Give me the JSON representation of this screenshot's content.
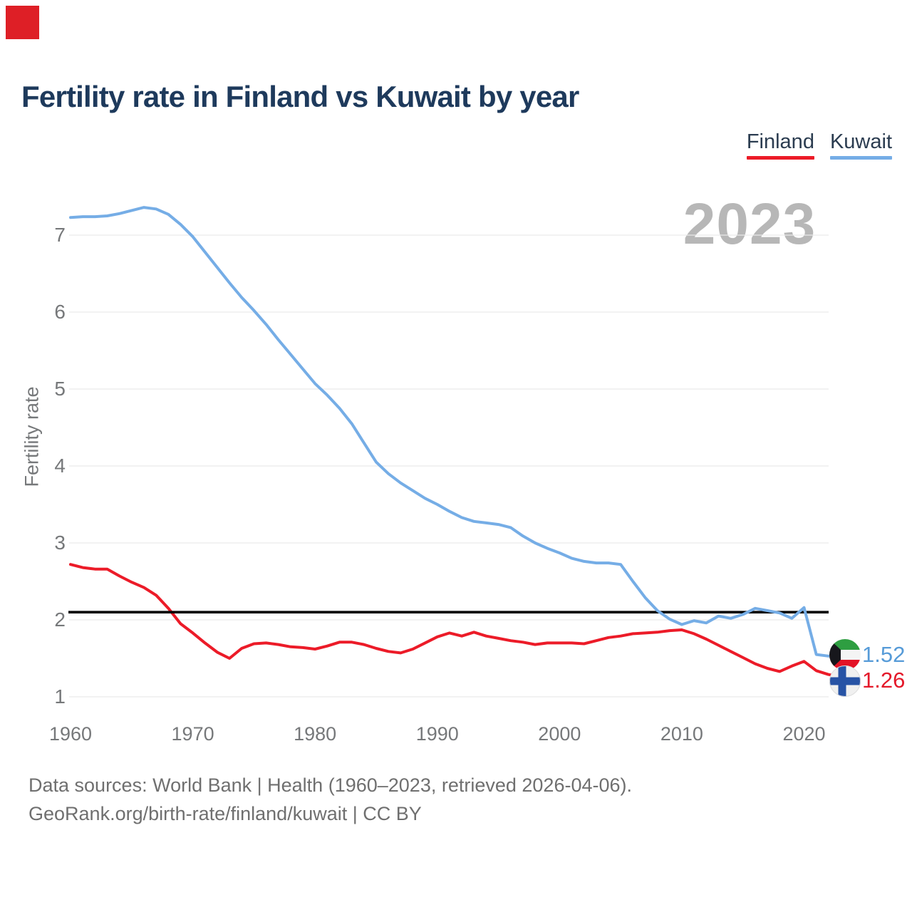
{
  "page": {
    "corner_marker_color": "#de1f26"
  },
  "header": {
    "title": "Fertility rate in Finland vs Kuwait by year"
  },
  "legend": [
    {
      "label": "Finland",
      "color": "#ec1b28"
    },
    {
      "label": "Kuwait",
      "color": "#75ade6"
    }
  ],
  "watermark": {
    "text": "2023"
  },
  "footer": {
    "line1": "Data sources: World Bank | Health (1960–2023, retrieved 2026-04-06).",
    "line2": "GeoRank.org/birth-rate/finland/kuwait | CC BY"
  },
  "chart_data": {
    "type": "line",
    "title": "Fertility rate in Finland vs Kuwait by year",
    "xlabel": "",
    "ylabel": "Fertility rate",
    "x_start": 1960,
    "x_end": 2023,
    "xticks": [
      1960,
      1970,
      1980,
      1990,
      2000,
      2010,
      2020
    ],
    "yticks": [
      1,
      2,
      3,
      4,
      5,
      6,
      7
    ],
    "ylim": [
      1,
      7.5
    ],
    "grid": "horizontal",
    "legend_position": "top-right",
    "reference_line": {
      "value": 2.1,
      "color": "#000000"
    },
    "series": [
      {
        "name": "Kuwait",
        "color": "#75ade6",
        "values": [
          7.23,
          7.24,
          7.24,
          7.25,
          7.28,
          7.32,
          7.36,
          7.34,
          7.27,
          7.14,
          6.98,
          6.78,
          6.58,
          6.38,
          6.19,
          6.02,
          5.84,
          5.64,
          5.45,
          5.26,
          5.07,
          4.92,
          4.75,
          4.55,
          4.3,
          4.05,
          3.9,
          3.78,
          3.68,
          3.58,
          3.5,
          3.41,
          3.33,
          3.28,
          3.26,
          3.24,
          3.2,
          3.09,
          3.0,
          2.93,
          2.87,
          2.8,
          2.76,
          2.74,
          2.74,
          2.72,
          2.5,
          2.29,
          2.12,
          2.01,
          1.94,
          1.99,
          1.96,
          2.05,
          2.02,
          2.07,
          2.15,
          2.12,
          2.09,
          2.02,
          2.16,
          1.55,
          1.53,
          1.52
        ]
      },
      {
        "name": "Finland",
        "color": "#ec1b28",
        "values": [
          2.72,
          2.68,
          2.66,
          2.66,
          2.57,
          2.49,
          2.42,
          2.32,
          2.15,
          1.95,
          1.83,
          1.7,
          1.58,
          1.5,
          1.63,
          1.69,
          1.7,
          1.68,
          1.65,
          1.64,
          1.62,
          1.66,
          1.71,
          1.71,
          1.68,
          1.63,
          1.59,
          1.57,
          1.62,
          1.7,
          1.78,
          1.83,
          1.79,
          1.84,
          1.79,
          1.76,
          1.73,
          1.71,
          1.68,
          1.7,
          1.7,
          1.7,
          1.69,
          1.73,
          1.77,
          1.79,
          1.82,
          1.83,
          1.84,
          1.86,
          1.87,
          1.82,
          1.75,
          1.67,
          1.59,
          1.51,
          1.43,
          1.37,
          1.33,
          1.4,
          1.46,
          1.34,
          1.29,
          1.26
        ]
      }
    ],
    "end_labels": [
      {
        "series": "Kuwait",
        "text": "1.52",
        "color": "#569bd8",
        "flag": "kuwait"
      },
      {
        "series": "Finland",
        "text": "1.26",
        "color": "#e4192a",
        "flag": "finland"
      }
    ]
  }
}
